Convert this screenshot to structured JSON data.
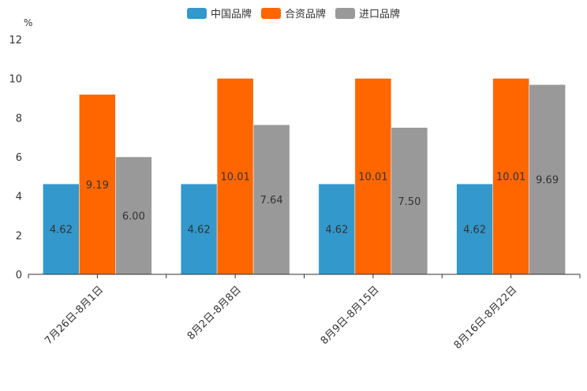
{
  "chart_data": {
    "type": "bar",
    "unit": "%",
    "categories": [
      "7月26日-8月1日",
      "8月2日-8月8日",
      "8月9日-8月15日",
      "8月16日-8月22日"
    ],
    "series": [
      {
        "name": "中国品牌",
        "color": "#3398cc",
        "values": [
          4.62,
          4.62,
          4.62,
          4.62
        ],
        "labels": [
          "4.62",
          "4.62",
          "4.62",
          "4.62"
        ]
      },
      {
        "name": "合资品牌",
        "color": "#ff6600",
        "values": [
          9.19,
          10.01,
          10.01,
          10.01
        ],
        "labels": [
          "9.19",
          "10.01",
          "10.01",
          "10.01"
        ]
      },
      {
        "name": "进口品牌",
        "color": "#999999",
        "values": [
          6.0,
          7.64,
          7.5,
          9.69
        ],
        "labels": [
          "6.00",
          "7.64",
          "7.50",
          "9.69"
        ]
      }
    ],
    "yticks": [
      "0",
      "2",
      "4",
      "6",
      "8",
      "10",
      "12"
    ],
    "ylim": [
      0,
      12
    ],
    "legend_position": "top-center",
    "grid": false
  }
}
